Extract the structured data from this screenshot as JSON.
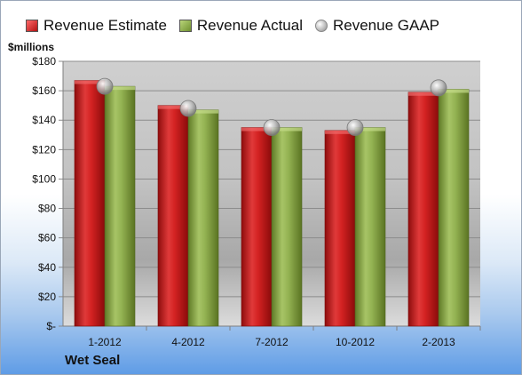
{
  "chart_data": {
    "type": "bar",
    "categories": [
      "1-2012",
      "4-2012",
      "7-2012",
      "10-2012",
      "2-2013"
    ],
    "series": [
      {
        "name": "Revenue Estimate",
        "values": [
          167,
          150,
          135,
          133,
          159
        ],
        "color": "#c0171b"
      },
      {
        "name": "Revenue Actual",
        "values": [
          163,
          147,
          135,
          135,
          161
        ],
        "color": "#8aa84a"
      },
      {
        "name": "Revenue GAAP",
        "values": [
          163,
          148,
          135,
          135,
          162
        ],
        "color": "#b0b0b0",
        "marker": "sphere"
      }
    ],
    "ylabel": "$millions",
    "ylim": [
      0,
      180
    ],
    "yticks": [
      0,
      20,
      40,
      60,
      80,
      100,
      120,
      140,
      160,
      180
    ],
    "ytick_labels": [
      "$-",
      "$20",
      "$40",
      "$60",
      "$80",
      "$100",
      "$120",
      "$140",
      "$160",
      "$180"
    ],
    "grid": true,
    "legend": "top",
    "footer": "Wet Seal"
  }
}
